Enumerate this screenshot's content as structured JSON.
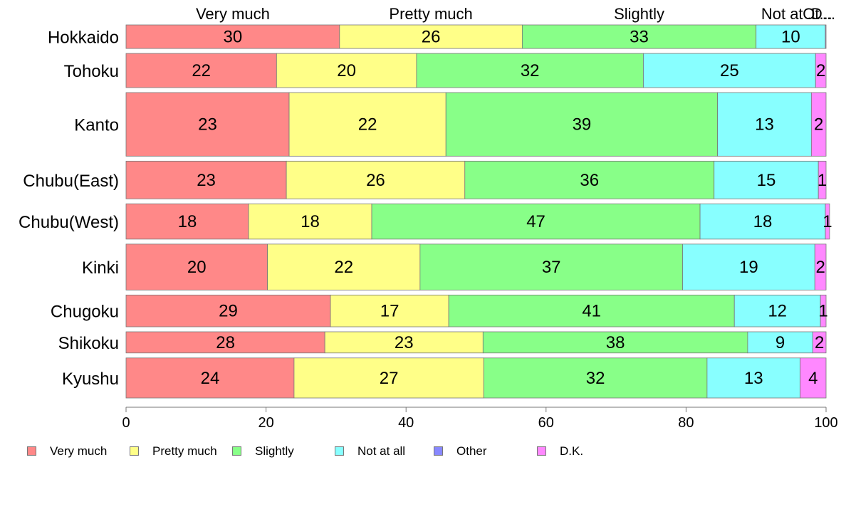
{
  "chart_data": {
    "type": "bar",
    "orientation": "horizontal",
    "stacked": true,
    "variable_width": true,
    "title": "",
    "xlabel": "",
    "ylabel": "",
    "xlim": [
      0,
      100
    ],
    "xticks": [
      0,
      20,
      40,
      60,
      80,
      100
    ],
    "grid": false,
    "legend_position": "bottom",
    "categories": [
      "Hokkaido",
      "Tohoku",
      "Kanto",
      "Chubu(East)",
      "Chubu(West)",
      "Kinki",
      "Chugoku",
      "Shikoku",
      "Kyushu"
    ],
    "relative_widths": [
      1,
      1.45,
      2.7,
      1.6,
      1.5,
      1.95,
      1.35,
      0.9,
      1.7
    ],
    "top_labels": [
      "Very much",
      "Pretty much",
      "Slightly",
      "Not at ...",
      "Ot...",
      "D..."
    ],
    "series": [
      {
        "name": "Very much",
        "color": "#ff8888",
        "values": [
          30.5,
          21.5,
          23.3,
          22.9,
          17.5,
          20.2,
          29.2,
          28.4,
          24.0
        ],
        "labels": [
          "30",
          "22",
          "23",
          "23",
          "18",
          "20",
          "29",
          "28",
          "24"
        ]
      },
      {
        "name": "Pretty much",
        "color": "#ffff88",
        "values": [
          26.1,
          20.0,
          22.4,
          25.5,
          17.6,
          21.8,
          16.9,
          22.6,
          27.1
        ],
        "labels": [
          "26",
          "20",
          "22",
          "26",
          "18",
          "22",
          "17",
          "23",
          "27"
        ]
      },
      {
        "name": "Slightly",
        "color": "#88ff88",
        "values": [
          33.4,
          32.4,
          38.8,
          35.6,
          46.9,
          37.5,
          40.8,
          37.8,
          31.9
        ],
        "labels": [
          "33",
          "32",
          "39",
          "36",
          "47",
          "37",
          "41",
          "38",
          "32"
        ]
      },
      {
        "name": "Not at all",
        "color": "#88ffff",
        "values": [
          9.9,
          24.6,
          13.4,
          14.9,
          17.9,
          18.9,
          12.3,
          9.3,
          13.3
        ],
        "labels": [
          "10",
          "25",
          "13",
          "15",
          "18",
          "19",
          "12",
          "9",
          "13"
        ]
      },
      {
        "name": "Other",
        "color": "#8888ff",
        "values": [
          0,
          0,
          0,
          0,
          0,
          0,
          0,
          0,
          0
        ],
        "labels": [
          "",
          "",
          "",
          "",
          "",
          "",
          "",
          "",
          ""
        ]
      },
      {
        "name": "D.K.",
        "color": "#ff88ff",
        "values": [
          0.1,
          1.5,
          2.1,
          1.1,
          0.6,
          1.6,
          0.8,
          1.9,
          3.7
        ],
        "labels": [
          "",
          "2",
          "2",
          "1",
          "1",
          "2",
          "1",
          "2",
          "4"
        ]
      }
    ]
  }
}
